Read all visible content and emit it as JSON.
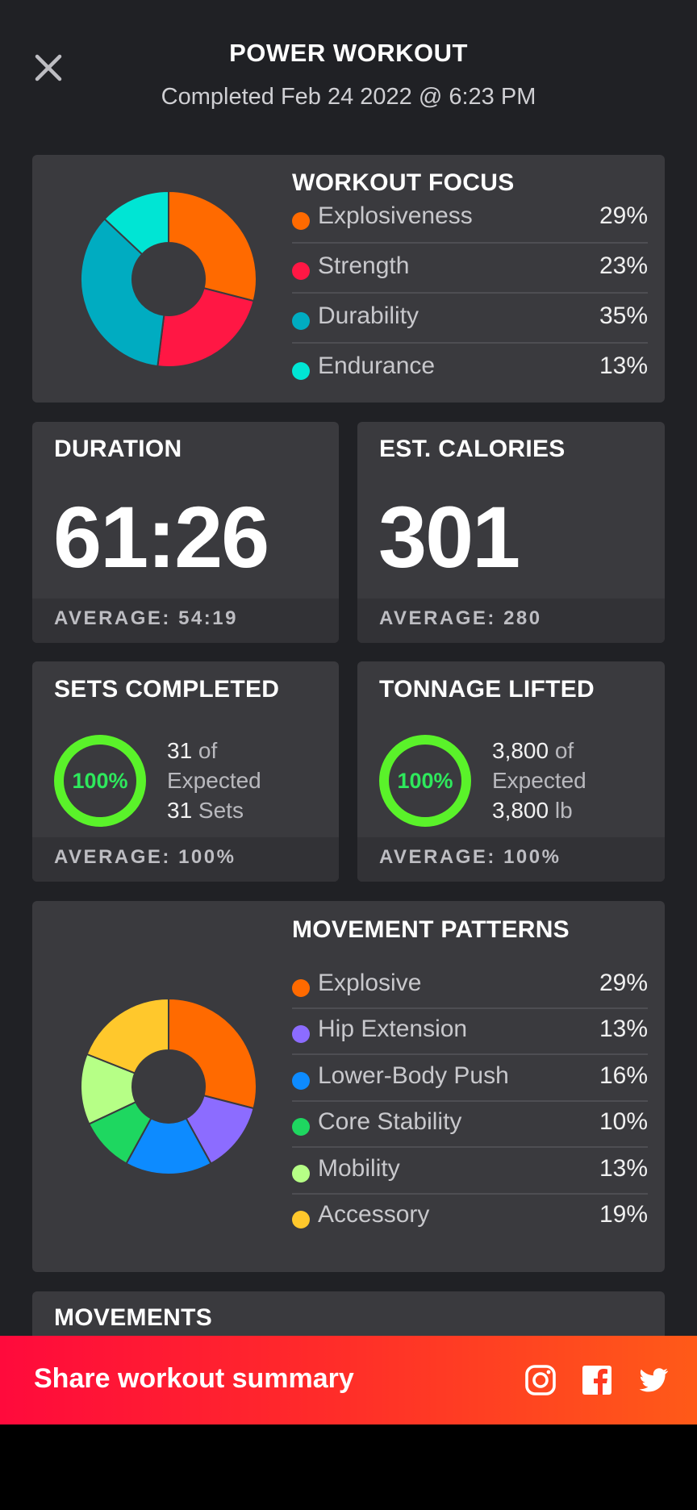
{
  "header": {
    "title": "POWER WORKOUT",
    "subtitle": "Completed Feb 24 2022 @ 6:23 PM",
    "close_icon": "close-icon"
  },
  "workout_focus": {
    "title": "WORKOUT FOCUS",
    "items": [
      {
        "label": "Explosiveness",
        "value": "29%",
        "pct": 29,
        "color": "#ff6a00"
      },
      {
        "label": "Strength",
        "value": "23%",
        "pct": 23,
        "color": "#ff1744"
      },
      {
        "label": "Durability",
        "value": "35%",
        "pct": 35,
        "color": "#00acc1"
      },
      {
        "label": "Endurance",
        "value": "13%",
        "pct": 13,
        "color": "#00e5d4"
      }
    ]
  },
  "duration": {
    "title": "DURATION",
    "value": "61:26",
    "average": "AVERAGE: 54:19"
  },
  "calories": {
    "title": "EST. CALORIES",
    "value": "301",
    "average": "AVERAGE: 280"
  },
  "sets": {
    "title": "SETS COMPLETED",
    "percent": "100%",
    "percent_value": 100,
    "line1_num": "31",
    "line1_rest": " of",
    "line2": "Expected",
    "line3_num": "31",
    "line3_rest": " Sets",
    "average": "AVERAGE: 100%"
  },
  "tonnage": {
    "title": "TONNAGE LIFTED",
    "percent": "100%",
    "percent_value": 100,
    "line1_num": "3,800",
    "line1_rest": " of",
    "line2": "Expected",
    "line3_num": "3,800",
    "line3_rest": " lb",
    "average": "AVERAGE: 100%"
  },
  "movement_patterns": {
    "title": "MOVEMENT PATTERNS",
    "items": [
      {
        "label": "Explosive",
        "value": "29%",
        "pct": 29,
        "color": "#ff6a00"
      },
      {
        "label": "Hip Extension",
        "value": "13%",
        "pct": 13,
        "color": "#8c6cff"
      },
      {
        "label": "Lower-Body Push",
        "value": "16%",
        "pct": 16,
        "color": "#0d8bff"
      },
      {
        "label": "Core Stability",
        "value": "10%",
        "pct": 10,
        "color": "#1ed760"
      },
      {
        "label": "Mobility",
        "value": "13%",
        "pct": 13,
        "color": "#b6ff86"
      },
      {
        "label": "Accessory",
        "value": "19%",
        "pct": 19,
        "color": "#ffc82c"
      }
    ]
  },
  "movements": {
    "title": "MOVEMENTS"
  },
  "share_bar": {
    "label": "Share workout summary",
    "icons": [
      "instagram-icon",
      "facebook-icon",
      "twitter-icon"
    ]
  },
  "colors": {
    "ring": "#5af22a",
    "ring_text": "#2ee85c",
    "card": "#3a3a3e",
    "background": "#202125"
  }
}
